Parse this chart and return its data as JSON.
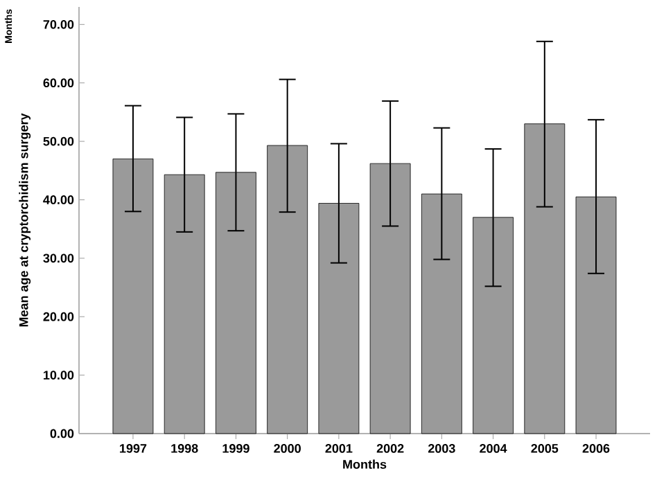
{
  "chart_data": {
    "type": "bar",
    "categories": [
      "1997",
      "1998",
      "1999",
      "2000",
      "2001",
      "2002",
      "2003",
      "2004",
      "2005",
      "2006"
    ],
    "values": [
      47.0,
      44.3,
      44.7,
      49.3,
      39.4,
      46.2,
      41.0,
      37.0,
      53.0,
      40.5
    ],
    "errors": [
      [
        38.0,
        56.1
      ],
      [
        34.5,
        54.1
      ],
      [
        34.7,
        54.7
      ],
      [
        37.9,
        60.6
      ],
      [
        29.2,
        49.6
      ],
      [
        35.5,
        56.9
      ],
      [
        29.8,
        52.3
      ],
      [
        25.2,
        48.7
      ],
      [
        38.8,
        67.1
      ],
      [
        27.4,
        53.7
      ]
    ],
    "color": "#9a9a9a",
    "xlabel": "Months",
    "ylabel": "Mean age at cryptorchidism surgery",
    "annotations": [
      "Months"
    ],
    "ylim": [
      0,
      73
    ],
    "yticks": [
      {
        "value": 0,
        "label": "0.00"
      },
      {
        "value": 10,
        "label": "10.00"
      },
      {
        "value": 20,
        "label": "20.00"
      },
      {
        "value": 30,
        "label": "30.00"
      },
      {
        "value": 40,
        "label": "40.00"
      },
      {
        "value": 50,
        "label": "50.00"
      },
      {
        "value": 60,
        "label": "60.00"
      },
      {
        "value": 70,
        "label": "70.00"
      }
    ],
    "grid": false
  }
}
